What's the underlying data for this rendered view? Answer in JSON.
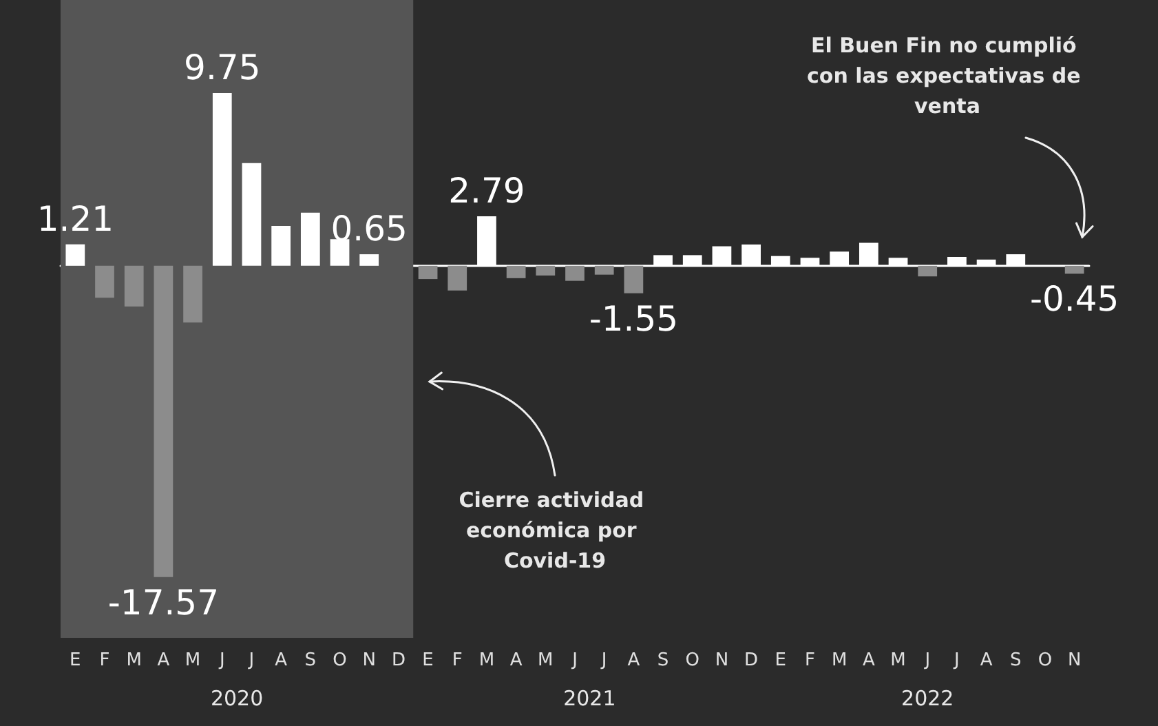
{
  "chart_data": {
    "type": "bar",
    "categories": [
      "E",
      "F",
      "M",
      "A",
      "M",
      "J",
      "J",
      "A",
      "S",
      "O",
      "N",
      "D",
      "E",
      "F",
      "M",
      "A",
      "M",
      "J",
      "J",
      "A",
      "S",
      "O",
      "N",
      "D",
      "E",
      "F",
      "M",
      "A",
      "M",
      "J",
      "J",
      "A",
      "S",
      "O",
      "N"
    ],
    "values": [
      1.21,
      -1.8,
      -2.3,
      -17.57,
      -3.2,
      9.75,
      5.8,
      2.25,
      3.0,
      1.5,
      0.65,
      null,
      -0.75,
      -1.4,
      2.79,
      -0.7,
      -0.55,
      -0.85,
      -0.5,
      -1.55,
      0.6,
      0.6,
      1.1,
      1.2,
      0.55,
      0.45,
      0.8,
      1.3,
      0.45,
      -0.6,
      0.5,
      0.35,
      0.65,
      null,
      -0.45
    ],
    "value_labels": [
      "1.21",
      null,
      null,
      "-17.57",
      null,
      "9.75",
      null,
      null,
      null,
      null,
      "0.65",
      null,
      null,
      null,
      "2.79",
      null,
      null,
      null,
      null,
      "-1.55",
      null,
      null,
      null,
      null,
      null,
      null,
      null,
      null,
      null,
      null,
      null,
      null,
      null,
      null,
      "-0.45"
    ],
    "colors": [
      "#ffffff",
      "#8c8c8c",
      "#8c8c8c",
      "#8c8c8c",
      "#8c8c8c",
      "#ffffff",
      "#ffffff",
      "#ffffff",
      "#ffffff",
      "#ffffff",
      "#ffffff",
      null,
      "#8c8c8c",
      "#8c8c8c",
      "#ffffff",
      "#8c8c8c",
      "#8c8c8c",
      "#8c8c8c",
      "#8c8c8c",
      "#8c8c8c",
      "#ffffff",
      "#ffffff",
      "#ffffff",
      "#ffffff",
      "#ffffff",
      "#ffffff",
      "#ffffff",
      "#ffffff",
      "#ffffff",
      "#8c8c8c",
      "#ffffff",
      "#ffffff",
      "#ffffff",
      null,
      "#8c8c8c"
    ],
    "ylim": [
      -21,
      15
    ],
    "bands": [
      {
        "axis": "x",
        "from": "E",
        "to": "D",
        "color": "#555555"
      }
    ],
    "annotations": [
      "Cierre actividad económica por Covid-19",
      "El Buen Fin no cumplió con las expectativas de venta",
      "2020",
      "2021",
      "2022"
    ]
  }
}
